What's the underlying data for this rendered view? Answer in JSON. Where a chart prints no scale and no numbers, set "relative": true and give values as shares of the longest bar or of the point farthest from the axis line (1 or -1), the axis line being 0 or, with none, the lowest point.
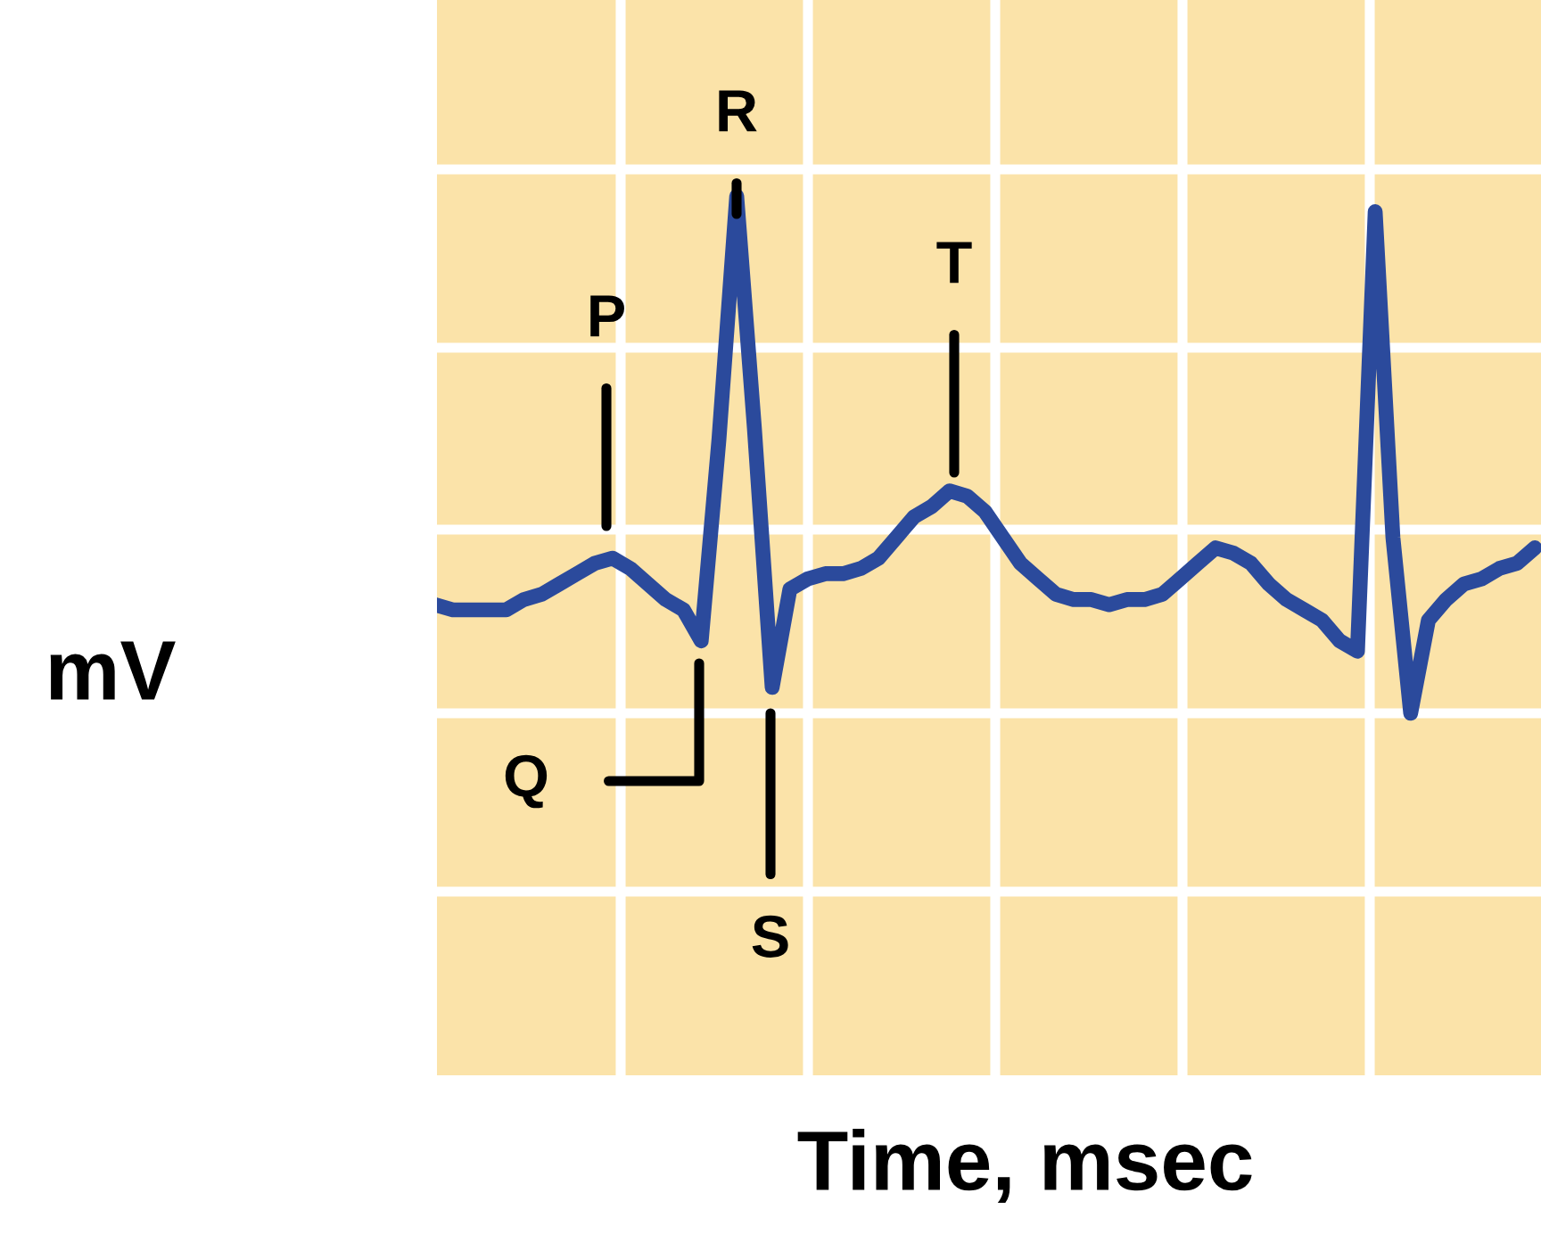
{
  "chart_data": {
    "type": "line",
    "relative": true,
    "xlabel": "Time, msec",
    "ylabel": "mV",
    "grid": true,
    "marker": "none",
    "line_style": "solid",
    "categories": [
      null,
      null,
      null,
      null,
      null,
      null,
      null,
      null,
      null,
      null,
      null,
      null,
      null,
      null,
      null,
      null,
      null,
      null,
      null,
      null,
      null,
      null,
      null,
      null,
      null,
      null,
      null,
      null,
      null,
      null,
      null,
      null,
      null,
      null,
      null,
      null,
      null,
      null,
      null,
      null,
      null,
      null,
      null,
      null,
      null,
      null,
      null,
      null,
      null,
      null,
      null,
      null,
      null,
      null,
      null,
      null,
      null,
      null,
      null,
      null,
      null,
      null,
      null
    ],
    "series": [
      {
        "color": "#2b4a9c",
        "values": [
          0.21,
          0.2,
          0.2,
          0.2,
          0.2,
          0.22,
          0.23,
          0.25,
          0.27,
          0.29,
          0.3,
          0.28,
          0.25,
          0.22,
          0.2,
          0.14,
          0.53,
          1.0,
          0.55,
          0.05,
          0.24,
          0.26,
          0.27,
          0.27,
          0.28,
          0.3,
          0.34,
          0.38,
          0.4,
          0.43,
          0.42,
          0.39,
          0.34,
          0.29,
          0.26,
          0.23,
          0.22,
          0.22,
          0.21,
          0.22,
          0.22,
          0.23,
          0.26,
          0.29,
          0.32,
          0.31,
          0.29,
          0.25,
          0.22,
          0.2,
          0.18,
          0.14,
          0.12,
          0.97,
          0.34,
          0.0,
          0.18,
          0.22,
          0.25,
          0.26,
          0.28,
          0.29,
          0.32
        ]
      }
    ],
    "annotations": [
      "P",
      "Q",
      "R",
      "S",
      "T"
    ]
  }
}
